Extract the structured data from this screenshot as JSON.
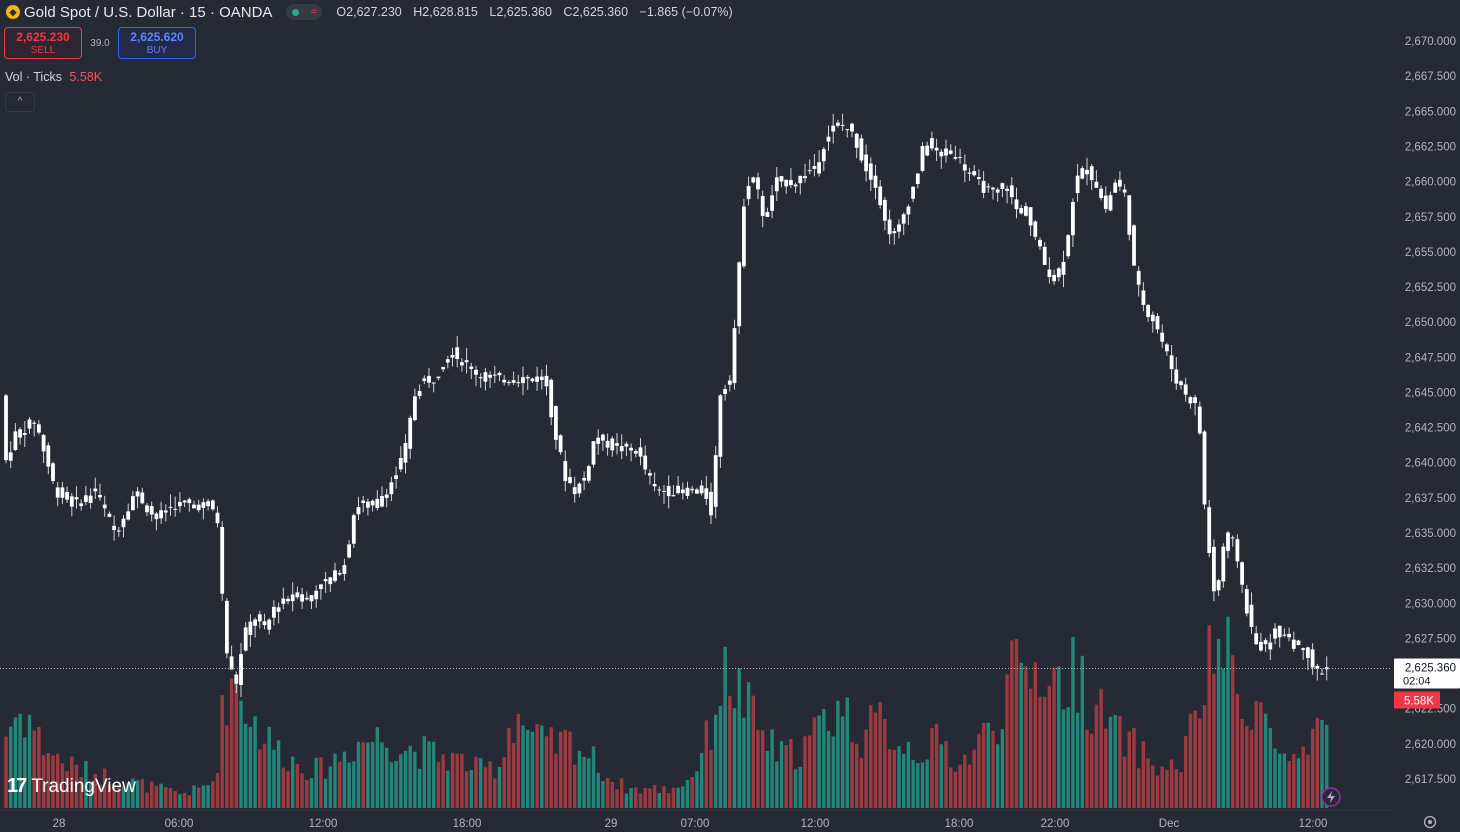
{
  "header": {
    "title": "Gold Spot / U.S. Dollar · 15 · OANDA",
    "ohlc": {
      "open": "O2,627.230",
      "high": "H2,628.815",
      "low": "L2,625.360",
      "close": "C2,625.360",
      "change": "−1.865 (−0.07%)"
    }
  },
  "trade": {
    "sell_price": "2,625.230",
    "sell_label": "SELL",
    "spread": "39.0",
    "buy_price": "2,625.620",
    "buy_label": "BUY"
  },
  "volume_legend": {
    "label": "Vol · Ticks",
    "value": "5.58K"
  },
  "brand": {
    "name": "TradingView"
  },
  "colors": {
    "background": "#262a35",
    "candle": "#ffffff",
    "volume_up": "#22877a",
    "volume_down": "#9d3a40",
    "price_label": "#ffffff",
    "volume_label": "#f23645"
  },
  "chart_data": {
    "type": "candlestick",
    "y_axis_ticks": [
      "2,670.000",
      "2,667.500",
      "2,665.000",
      "2,662.500",
      "2,660.000",
      "2,657.500",
      "2,655.000",
      "2,652.500",
      "2,650.000",
      "2,647.500",
      "2,645.000",
      "2,642.500",
      "2,640.000",
      "2,637.500",
      "2,635.000",
      "2,632.500",
      "2,630.000",
      "2,627.500",
      "2,625.000",
      "2,622.500",
      "2,620.000",
      "2,617.500"
    ],
    "ylim": [
      2616.5,
      2671.5
    ],
    "x_axis_ticks": [
      "28",
      "06:00",
      "12:00",
      "18:00",
      "29",
      "07:00",
      "12:00",
      "18:00",
      "22:00",
      "Dec",
      "12:00"
    ],
    "last_price": {
      "value": 2625.36,
      "label": "2,625.360",
      "countdown": "02:04"
    },
    "last_volume": {
      "label": "5.58K"
    },
    "price_path": [
      [
        0,
        2652
      ],
      [
        10,
        2640
      ],
      [
        20,
        2642
      ],
      [
        40,
        2643
      ],
      [
        60,
        2638
      ],
      [
        80,
        2637
      ],
      [
        100,
        2638
      ],
      [
        120,
        2635
      ],
      [
        140,
        2638
      ],
      [
        160,
        2636
      ],
      [
        180,
        2637
      ],
      [
        200,
        2637
      ],
      [
        215,
        2637
      ],
      [
        222,
        2636
      ],
      [
        230,
        2627
      ],
      [
        240,
        2624
      ],
      [
        250,
        2628
      ],
      [
        260,
        2629
      ],
      [
        270,
        2628
      ],
      [
        280,
        2630
      ],
      [
        290,
        2630
      ],
      [
        300,
        2631
      ],
      [
        310,
        2630
      ],
      [
        320,
        2631
      ],
      [
        340,
        2632
      ],
      [
        350,
        2633
      ],
      [
        360,
        2637
      ],
      [
        380,
        2637
      ],
      [
        400,
        2639
      ],
      [
        410,
        2641
      ],
      [
        420,
        2645
      ],
      [
        430,
        2646
      ],
      [
        440,
        2646
      ],
      [
        455,
        2648
      ],
      [
        470,
        2647
      ],
      [
        490,
        2646
      ],
      [
        510,
        2646
      ],
      [
        530,
        2646
      ],
      [
        550,
        2646
      ],
      [
        560,
        2642
      ],
      [
        570,
        2639
      ],
      [
        580,
        2638
      ],
      [
        590,
        2639
      ],
      [
        600,
        2642
      ],
      [
        620,
        2641
      ],
      [
        640,
        2641
      ],
      [
        660,
        2638
      ],
      [
        680,
        2638
      ],
      [
        700,
        2638
      ],
      [
        710,
        2638
      ],
      [
        715,
        2636
      ],
      [
        720,
        2640
      ],
      [
        725,
        2645
      ],
      [
        735,
        2646
      ],
      [
        742,
        2652
      ],
      [
        750,
        2660
      ],
      [
        760,
        2660
      ],
      [
        770,
        2657
      ],
      [
        780,
        2660
      ],
      [
        800,
        2660
      ],
      [
        820,
        2661
      ],
      [
        830,
        2663
      ],
      [
        840,
        2664
      ],
      [
        850,
        2664
      ],
      [
        860,
        2663
      ],
      [
        870,
        2661
      ],
      [
        880,
        2660
      ],
      [
        890,
        2657
      ],
      [
        900,
        2656
      ],
      [
        910,
        2658
      ],
      [
        920,
        2660
      ],
      [
        930,
        2663
      ],
      [
        940,
        2662
      ],
      [
        960,
        2662
      ],
      [
        980,
        2660
      ],
      [
        1000,
        2659
      ],
      [
        1010,
        2660
      ],
      [
        1020,
        2658
      ],
      [
        1030,
        2658
      ],
      [
        1040,
        2656
      ],
      [
        1050,
        2654
      ],
      [
        1060,
        2653
      ],
      [
        1070,
        2655
      ],
      [
        1080,
        2660
      ],
      [
        1090,
        2661
      ],
      [
        1100,
        2660
      ],
      [
        1110,
        2658
      ],
      [
        1120,
        2660
      ],
      [
        1130,
        2659
      ],
      [
        1140,
        2653
      ],
      [
        1150,
        2651
      ],
      [
        1160,
        2650
      ],
      [
        1170,
        2648
      ],
      [
        1180,
        2646
      ],
      [
        1190,
        2645
      ],
      [
        1200,
        2644
      ],
      [
        1205,
        2642
      ],
      [
        1210,
        2636
      ],
      [
        1220,
        2630
      ],
      [
        1230,
        2635
      ],
      [
        1240,
        2634
      ],
      [
        1250,
        2630
      ],
      [
        1260,
        2627
      ],
      [
        1270,
        2627
      ],
      [
        1280,
        2628
      ],
      [
        1290,
        2628
      ],
      [
        1300,
        2627
      ],
      [
        1310,
        2627
      ],
      [
        1320,
        2625
      ],
      [
        1330,
        2625.36
      ]
    ],
    "volume_path": [
      [
        0,
        60
      ],
      [
        10,
        90
      ],
      [
        20,
        100
      ],
      [
        30,
        95
      ],
      [
        40,
        70
      ],
      [
        60,
        50
      ],
      [
        80,
        40
      ],
      [
        100,
        35
      ],
      [
        120,
        30
      ],
      [
        140,
        25
      ],
      [
        160,
        20
      ],
      [
        180,
        15
      ],
      [
        200,
        20
      ],
      [
        215,
        30
      ],
      [
        225,
        120
      ],
      [
        235,
        140
      ],
      [
        245,
        110
      ],
      [
        260,
        80
      ],
      [
        280,
        60
      ],
      [
        300,
        45
      ],
      [
        320,
        40
      ],
      [
        340,
        55
      ],
      [
        360,
        70
      ],
      [
        380,
        75
      ],
      [
        400,
        65
      ],
      [
        420,
        60
      ],
      [
        440,
        55
      ],
      [
        460,
        50
      ],
      [
        480,
        40
      ],
      [
        500,
        45
      ],
      [
        510,
        90
      ],
      [
        520,
        100
      ],
      [
        530,
        75
      ],
      [
        550,
        65
      ],
      [
        570,
        70
      ],
      [
        590,
        55
      ],
      [
        610,
        30
      ],
      [
        630,
        20
      ],
      [
        650,
        20
      ],
      [
        670,
        20
      ],
      [
        690,
        30
      ],
      [
        710,
        80
      ],
      [
        720,
        130
      ],
      [
        730,
        140
      ],
      [
        740,
        120
      ],
      [
        750,
        100
      ],
      [
        760,
        80
      ],
      [
        780,
        55
      ],
      [
        800,
        60
      ],
      [
        820,
        85
      ],
      [
        840,
        110
      ],
      [
        860,
        75
      ],
      [
        880,
        90
      ],
      [
        900,
        70
      ],
      [
        920,
        60
      ],
      [
        940,
        70
      ],
      [
        960,
        45
      ],
      [
        980,
        70
      ],
      [
        1000,
        100
      ],
      [
        1010,
        140
      ],
      [
        1020,
        135
      ],
      [
        1040,
        150
      ],
      [
        1060,
        130
      ],
      [
        1080,
        145
      ],
      [
        1090,
        110
      ],
      [
        1100,
        100
      ],
      [
        1120,
        75
      ],
      [
        1140,
        60
      ],
      [
        1160,
        40
      ],
      [
        1180,
        45
      ],
      [
        1200,
        110
      ],
      [
        1210,
        150
      ],
      [
        1220,
        180
      ],
      [
        1230,
        150
      ],
      [
        1240,
        100
      ],
      [
        1250,
        120
      ],
      [
        1260,
        105
      ],
      [
        1270,
        80
      ],
      [
        1280,
        55
      ],
      [
        1300,
        45
      ],
      [
        1310,
        60
      ],
      [
        1320,
        78
      ],
      [
        1330,
        100
      ]
    ]
  }
}
